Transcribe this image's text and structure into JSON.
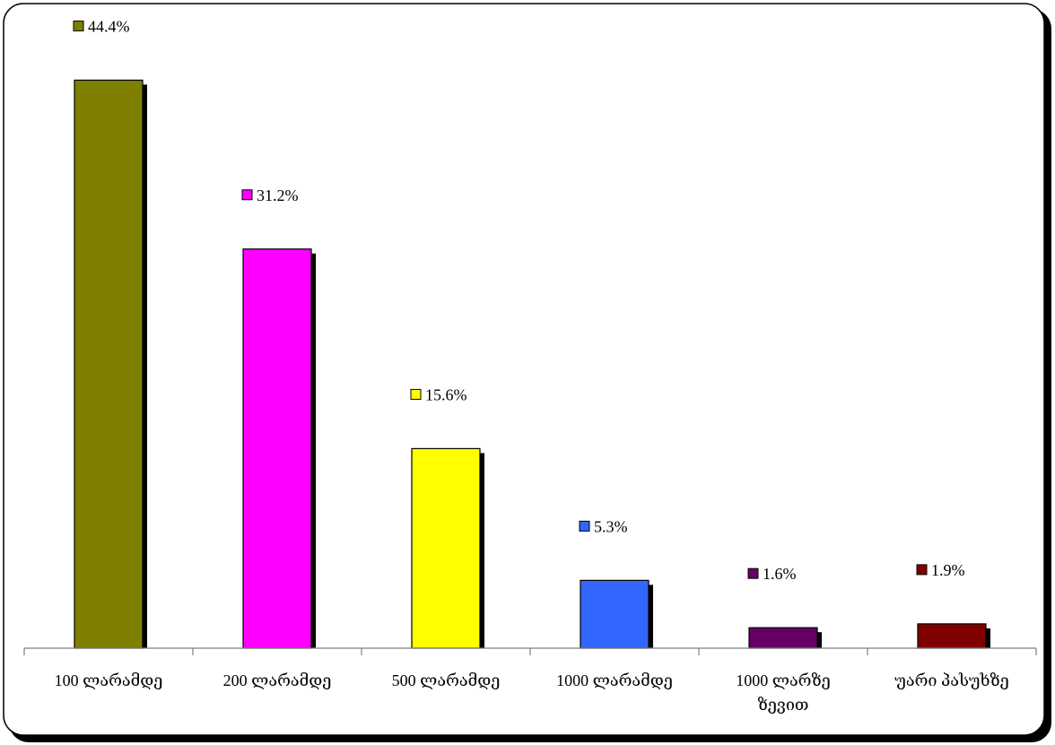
{
  "chart_data": {
    "type": "bar",
    "categories": [
      [
        "100 ლარამდე"
      ],
      [
        "200 ლარამდე"
      ],
      [
        "500 ლარამდე"
      ],
      [
        "1000 ლარამდე"
      ],
      [
        "1000 ლარზე",
        "ზევით"
      ],
      [
        "უარი პასუხზე"
      ]
    ],
    "values": [
      44.4,
      31.2,
      15.6,
      5.3,
      1.6,
      1.9
    ],
    "data_labels": [
      "44.4%",
      "31.2%",
      "15.6%",
      "5.3%",
      "1.6%",
      "1.9%"
    ],
    "colors": [
      "#808000",
      "#ff00ff",
      "#ffff00",
      "#3366ff",
      "#660066",
      "#800000"
    ],
    "title": "",
    "xlabel": "",
    "ylabel": "",
    "ylim": [
      0,
      50
    ],
    "grid": false,
    "legend": "none"
  }
}
